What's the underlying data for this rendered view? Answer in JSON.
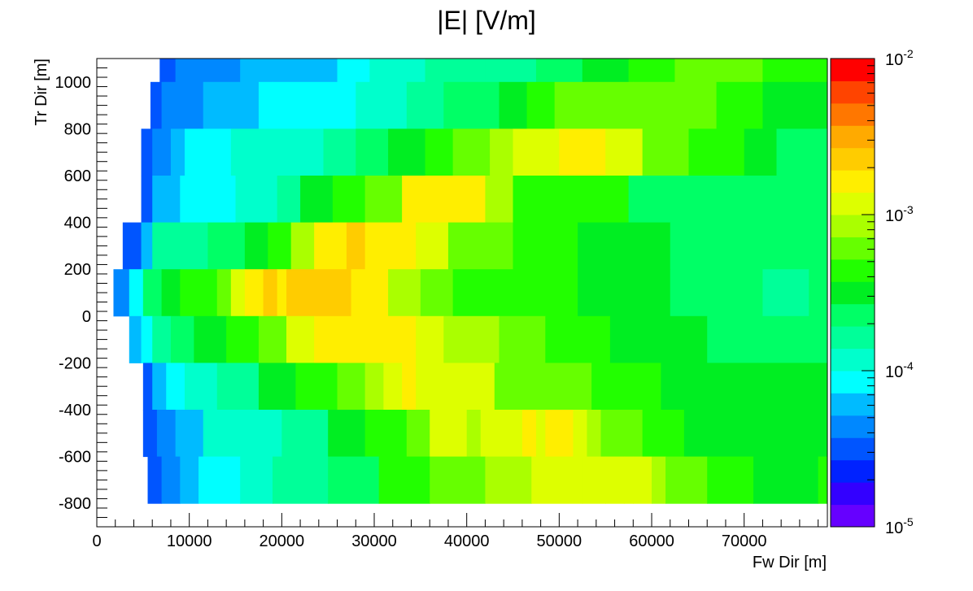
{
  "chart_data": {
    "type": "heatmap",
    "title": "|E| [V/m]",
    "xlabel": "Fw Dir [m]",
    "ylabel": "Tr Dir [m]",
    "xlim": [
      0,
      79000
    ],
    "ylim": [
      -900,
      1100
    ],
    "x_ticks": [
      0,
      10000,
      20000,
      30000,
      40000,
      50000,
      60000,
      70000
    ],
    "y_ticks": [
      -800,
      -600,
      -400,
      -200,
      0,
      200,
      400,
      600,
      800,
      1000
    ],
    "z_scale": "log",
    "zlim": [
      1e-05,
      0.01
    ],
    "z_ticks": [
      {
        "value": 1e-05,
        "base": "10",
        "exp": "-5"
      },
      {
        "value": 0.0001,
        "base": "10",
        "exp": "-4"
      },
      {
        "value": 0.001,
        "base": "10",
        "exp": "-3"
      },
      {
        "value": 0.01,
        "base": "10",
        "exp": "-2"
      }
    ],
    "palette": [
      "#6600ff",
      "#3300ff",
      "#0022ff",
      "#0055ff",
      "#0088ff",
      "#00bbff",
      "#00ffff",
      "#00ffcc",
      "#00ff99",
      "#00ff66",
      "#00ee22",
      "#22ff00",
      "#66ff00",
      "#aaff00",
      "#ddff00",
      "#ffee00",
      "#ffcc00",
      "#ffaa00",
      "#ff7700",
      "#ff4400",
      "#ff0000"
    ],
    "rows": [
      {
        "y": [
          1000,
          1100
        ],
        "runs": [
          [
            6800,
            -4.65
          ],
          [
            8500,
            -4.5
          ],
          [
            15500,
            -4.38
          ],
          [
            18000,
            -4.28
          ],
          [
            22000,
            -4.2
          ],
          [
            26000,
            -4.18
          ],
          [
            29500,
            -4.12
          ],
          [
            35500,
            -3.98
          ],
          [
            42000,
            -3.85
          ],
          [
            47500,
            -3.75
          ],
          [
            52500,
            -3.6
          ],
          [
            57500,
            -3.45
          ],
          [
            60500,
            -3.38
          ],
          [
            62500,
            -3.3
          ],
          [
            66000,
            -3.25
          ],
          [
            72000,
            -3.28
          ],
          [
            76500,
            -3.32
          ],
          [
            79000,
            -3.4
          ]
        ]
      },
      {
        "y": [
          800,
          1000
        ],
        "runs": [
          [
            5800,
            -4.65
          ],
          [
            7000,
            -4.55
          ],
          [
            8500,
            -4.42
          ],
          [
            11500,
            -4.35
          ],
          [
            17500,
            -4.2
          ],
          [
            19000,
            -4.12
          ],
          [
            28000,
            -4.05
          ],
          [
            33500,
            -3.95
          ],
          [
            37500,
            -3.85
          ],
          [
            43500,
            -3.62
          ],
          [
            46500,
            -3.45
          ],
          [
            49500,
            -3.3
          ],
          [
            53000,
            -3.22
          ],
          [
            58000,
            -3.18
          ],
          [
            63000,
            -3.22
          ],
          [
            67000,
            -3.28
          ],
          [
            72000,
            -3.42
          ],
          [
            79000,
            -3.48
          ]
        ]
      },
      {
        "y": [
          600,
          800
        ],
        "runs": [
          [
            4800,
            -4.65
          ],
          [
            6000,
            -4.5
          ],
          [
            8000,
            -4.35
          ],
          [
            9500,
            -4.25
          ],
          [
            11000,
            -4.1
          ],
          [
            14500,
            -4.08
          ],
          [
            19500,
            -4.0
          ],
          [
            24500,
            -3.9
          ],
          [
            28000,
            -3.75
          ],
          [
            31500,
            -3.6
          ],
          [
            35500,
            -3.45
          ],
          [
            38500,
            -3.35
          ],
          [
            42500,
            -3.2
          ],
          [
            45000,
            -3.08
          ],
          [
            50000,
            -2.92
          ],
          [
            55000,
            -2.82
          ],
          [
            59000,
            -2.98
          ],
          [
            64000,
            -3.15
          ],
          [
            70000,
            -3.35
          ],
          [
            73500,
            -3.5
          ],
          [
            79000,
            -3.6
          ]
        ]
      },
      {
        "y": [
          400,
          600
        ],
        "runs": [
          [
            4800,
            -4.62
          ],
          [
            6000,
            -4.45
          ],
          [
            9000,
            -4.2
          ],
          [
            15000,
            -4.05
          ],
          [
            19500,
            -3.95
          ],
          [
            22000,
            -3.75
          ],
          [
            25500,
            -3.55
          ],
          [
            29000,
            -3.42
          ],
          [
            33000,
            -3.22
          ],
          [
            35500,
            -2.78
          ],
          [
            38000,
            -2.72
          ],
          [
            42000,
            -2.82
          ],
          [
            45000,
            -3.1
          ],
          [
            51500,
            -3.3
          ],
          [
            57500,
            -3.42
          ],
          [
            66000,
            -3.58
          ],
          [
            77000,
            -3.7
          ],
          [
            79000,
            -3.65
          ]
        ]
      },
      {
        "y": [
          200,
          400
        ],
        "runs": [
          [
            2800,
            -4.6
          ],
          [
            4800,
            -4.5
          ],
          [
            6000,
            -4.15
          ],
          [
            8500,
            -3.85
          ],
          [
            12000,
            -3.75
          ],
          [
            16000,
            -3.6
          ],
          [
            18500,
            -3.48
          ],
          [
            21000,
            -3.32
          ],
          [
            23500,
            -3.08
          ],
          [
            27000,
            -2.85
          ],
          [
            29000,
            -2.68
          ],
          [
            34500,
            -2.75
          ],
          [
            38000,
            -2.92
          ],
          [
            45000,
            -3.15
          ],
          [
            52000,
            -3.35
          ],
          [
            62000,
            -3.45
          ],
          [
            73000,
            -3.6
          ],
          [
            78000,
            -3.7
          ],
          [
            79000,
            -3.68
          ]
        ]
      },
      {
        "y": [
          0,
          200
        ],
        "runs": [
          [
            1800,
            -4.55
          ],
          [
            3500,
            -4.35
          ],
          [
            5000,
            -4.05
          ],
          [
            7000,
            -3.7
          ],
          [
            9000,
            -3.55
          ],
          [
            13000,
            -3.35
          ],
          [
            14500,
            -3.15
          ],
          [
            16000,
            -2.95
          ],
          [
            18000,
            -2.85
          ],
          [
            19500,
            -2.7
          ],
          [
            20500,
            -2.75
          ],
          [
            27500,
            -2.62
          ],
          [
            31500,
            -2.8
          ],
          [
            35000,
            -3.05
          ],
          [
            38500,
            -3.18
          ],
          [
            43000,
            -3.3
          ],
          [
            52000,
            -3.42
          ],
          [
            62000,
            -3.48
          ],
          [
            72000,
            -3.62
          ],
          [
            77000,
            -3.72
          ],
          [
            79000,
            -3.68
          ]
        ]
      },
      {
        "y": [
          -200,
          0
        ],
        "runs": [
          [
            3500,
            -4.52
          ],
          [
            4800,
            -4.25
          ],
          [
            6000,
            -4.02
          ],
          [
            8000,
            -3.8
          ],
          [
            10500,
            -3.6
          ],
          [
            14000,
            -3.52
          ],
          [
            17500,
            -3.35
          ],
          [
            20500,
            -3.2
          ],
          [
            23500,
            -3.0
          ],
          [
            27500,
            -2.85
          ],
          [
            31500,
            -2.72
          ],
          [
            34500,
            -2.82
          ],
          [
            37500,
            -2.95
          ],
          [
            43500,
            -3.08
          ],
          [
            48500,
            -3.2
          ],
          [
            55500,
            -3.38
          ],
          [
            66000,
            -3.48
          ],
          [
            79000,
            -3.58
          ]
        ]
      },
      {
        "y": [
          -400,
          -200
        ],
        "runs": [
          [
            5000,
            -4.62
          ],
          [
            6000,
            -4.45
          ],
          [
            7500,
            -4.28
          ],
          [
            9500,
            -4.08
          ],
          [
            13000,
            -3.88
          ],
          [
            17500,
            -3.72
          ],
          [
            21500,
            -3.5
          ],
          [
            26000,
            -3.35
          ],
          [
            29000,
            -3.18
          ],
          [
            31000,
            -3.08
          ],
          [
            33000,
            -2.88
          ],
          [
            34500,
            -2.8
          ],
          [
            43000,
            -2.9
          ],
          [
            46500,
            -3.15
          ],
          [
            53500,
            -3.25
          ],
          [
            61000,
            -3.35
          ],
          [
            71500,
            -3.45
          ],
          [
            79000,
            -3.55
          ]
        ]
      },
      {
        "y": [
          -600,
          -400
        ],
        "runs": [
          [
            5000,
            -4.62
          ],
          [
            6500,
            -4.45
          ],
          [
            8500,
            -4.32
          ],
          [
            11500,
            -4.18
          ],
          [
            15500,
            -4.0
          ],
          [
            20000,
            -3.88
          ],
          [
            25000,
            -3.75
          ],
          [
            29000,
            -3.5
          ],
          [
            33500,
            -3.3
          ],
          [
            36000,
            -3.2
          ],
          [
            40000,
            -3.0
          ],
          [
            41500,
            -3.05
          ],
          [
            46000,
            -2.92
          ],
          [
            47500,
            -2.85
          ],
          [
            48500,
            -2.95
          ],
          [
            50000,
            -2.85
          ],
          [
            51500,
            -2.78
          ],
          [
            53000,
            -2.88
          ],
          [
            54500,
            -3.1
          ],
          [
            59000,
            -3.2
          ],
          [
            63500,
            -3.35
          ],
          [
            70000,
            -3.45
          ],
          [
            79000,
            -3.5
          ]
        ]
      },
      {
        "y": [
          -800,
          -600
        ],
        "runs": [
          [
            5500,
            -4.62
          ],
          [
            7000,
            -4.5
          ],
          [
            9000,
            -4.35
          ],
          [
            11000,
            -4.22
          ],
          [
            15500,
            -4.02
          ],
          [
            19000,
            -3.9
          ],
          [
            25000,
            -3.75
          ],
          [
            30500,
            -3.6
          ],
          [
            36000,
            -3.42
          ],
          [
            42000,
            -3.22
          ],
          [
            47000,
            -3.12
          ],
          [
            52500,
            -3.0
          ],
          [
            55000,
            -2.9
          ],
          [
            57000,
            -2.95
          ],
          [
            58000,
            -3.0
          ],
          [
            60000,
            -2.95
          ],
          [
            61500,
            -3.1
          ],
          [
            66000,
            -3.18
          ],
          [
            71000,
            -3.3
          ],
          [
            78000,
            -3.45
          ],
          [
            79000,
            -3.42
          ]
        ]
      }
    ]
  }
}
